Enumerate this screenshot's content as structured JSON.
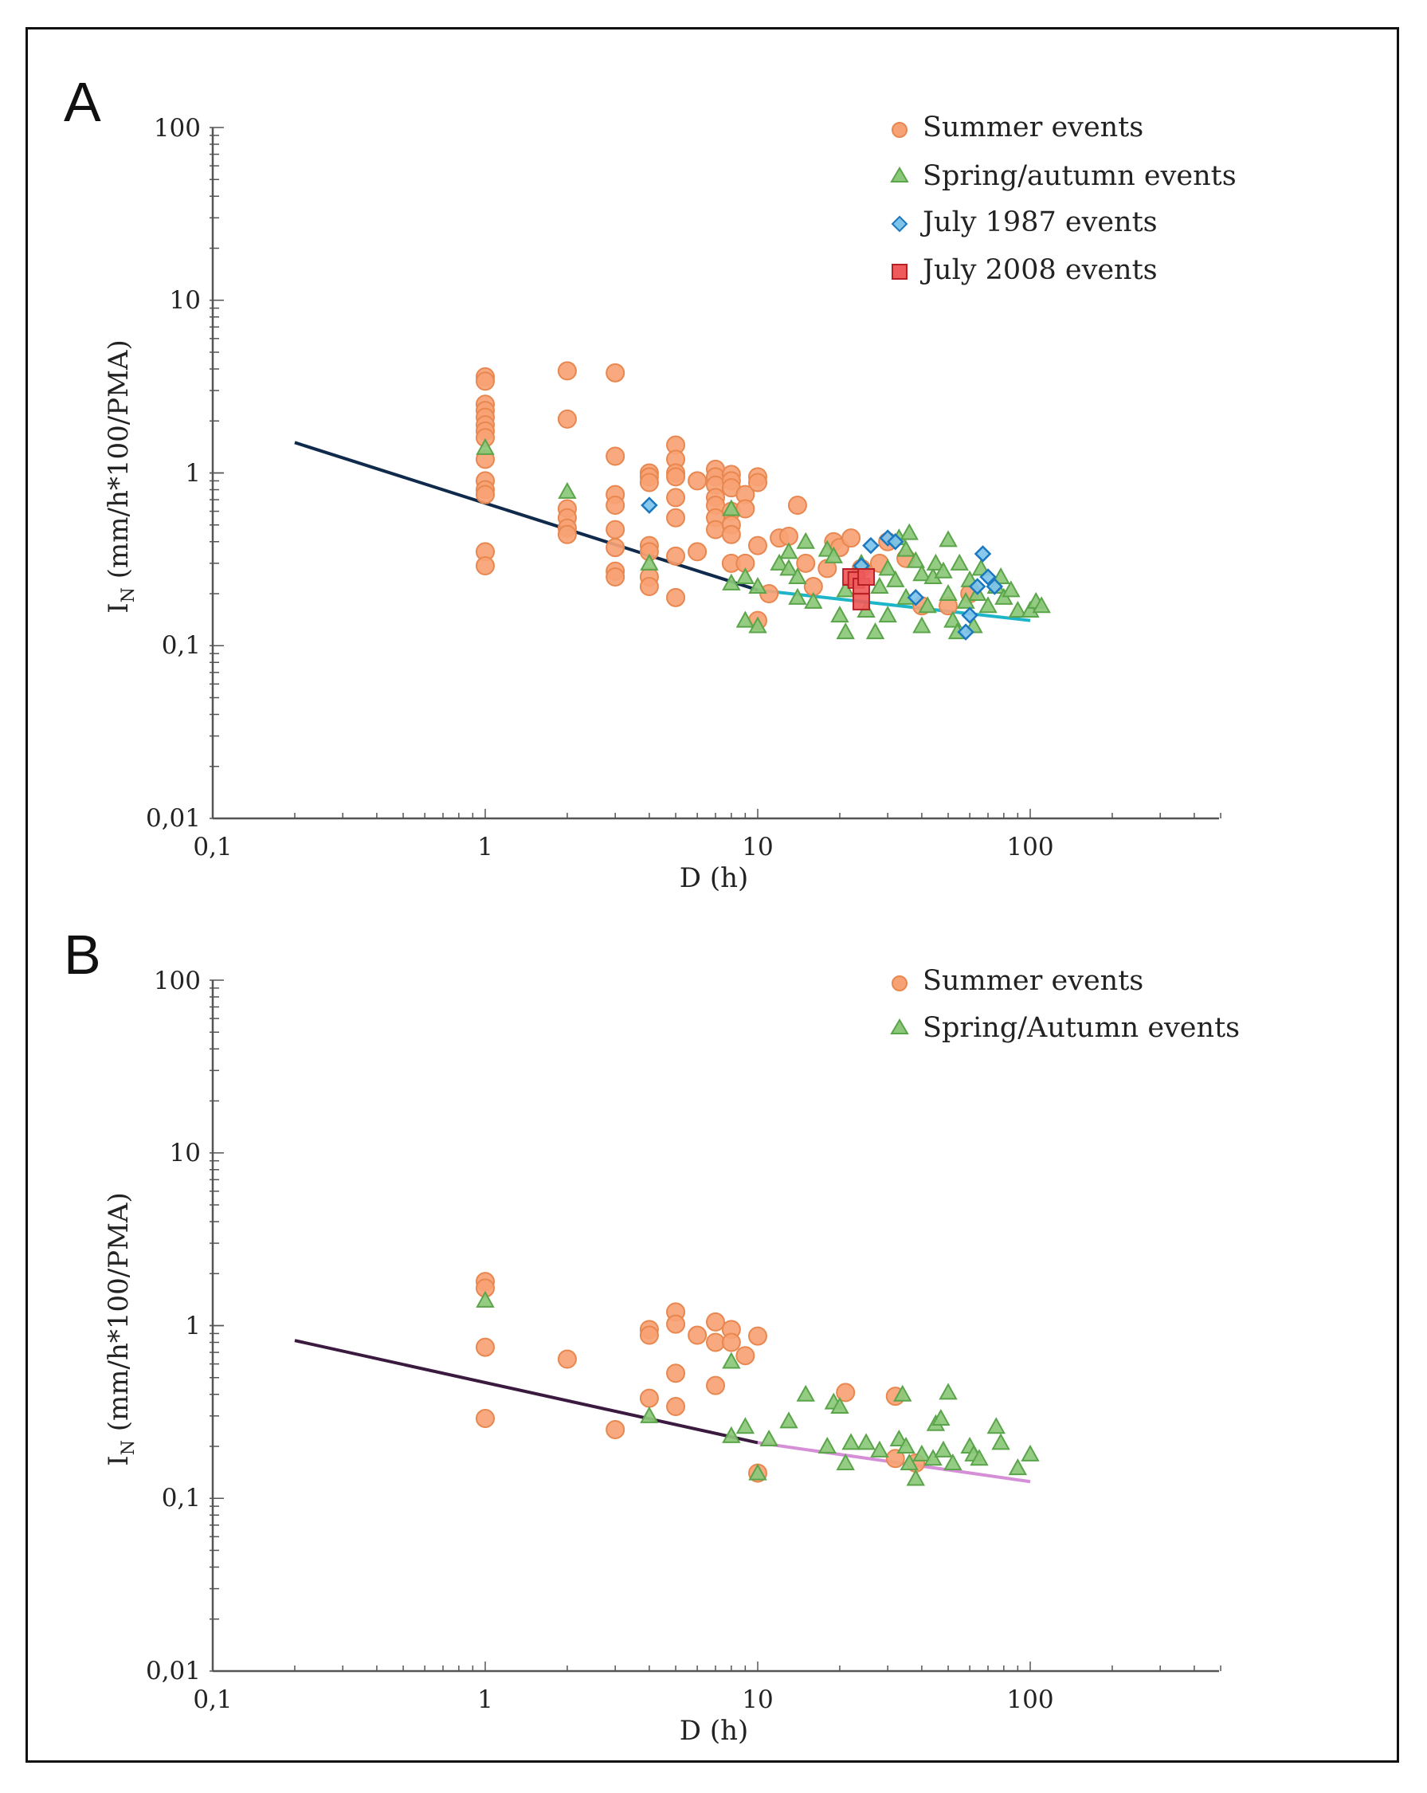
{
  "chart_data": [
    {
      "panel": "A",
      "type": "scatter",
      "xscale": "log",
      "yscale": "log",
      "xlabel": "D (h)",
      "ylabel_main": "I",
      "ylabel_sub": "N",
      "ylabel_rest": " (mm/h*100/PMA)",
      "xlim": [
        0.1,
        500
      ],
      "ylim": [
        0.01,
        100
      ],
      "x_ticks": [
        0.1,
        1,
        10,
        100
      ],
      "x_tick_labels": [
        "0,1",
        "1",
        "10",
        "100"
      ],
      "y_ticks": [
        0.01,
        0.1,
        1,
        10,
        100
      ],
      "y_tick_labels": [
        "0,01",
        "0,1",
        "1",
        "10",
        "100"
      ],
      "legend_position": "top-right",
      "series": [
        {
          "name": "Summer events",
          "marker": "circle",
          "fill": "#f7a274",
          "stroke": "#e8874f",
          "points": [
            [
              1,
              3.6
            ],
            [
              1,
              3.4
            ],
            [
              1,
              2.5
            ],
            [
              1,
              2.3
            ],
            [
              1,
              2.1
            ],
            [
              1,
              1.9
            ],
            [
              1,
              1.75
            ],
            [
              1,
              1.6
            ],
            [
              1,
              1.2
            ],
            [
              1,
              0.9
            ],
            [
              1,
              0.8
            ],
            [
              1,
              0.75
            ],
            [
              1,
              0.35
            ],
            [
              1,
              0.29
            ],
            [
              2,
              3.9
            ],
            [
              2,
              2.05
            ],
            [
              2,
              0.62
            ],
            [
              2,
              0.55
            ],
            [
              2,
              0.48
            ],
            [
              2,
              0.44
            ],
            [
              3,
              3.8
            ],
            [
              3,
              1.25
            ],
            [
              3,
              0.75
            ],
            [
              3,
              0.65
            ],
            [
              3,
              0.47
            ],
            [
              3,
              0.37
            ],
            [
              3,
              0.27
            ],
            [
              3,
              0.25
            ],
            [
              4,
              1.0
            ],
            [
              4,
              0.95
            ],
            [
              4,
              0.88
            ],
            [
              4,
              0.38
            ],
            [
              4,
              0.35
            ],
            [
              4,
              0.25
            ],
            [
              4,
              0.22
            ],
            [
              5,
              1.45
            ],
            [
              5,
              1.2
            ],
            [
              5,
              1.0
            ],
            [
              5,
              0.95
            ],
            [
              5,
              0.72
            ],
            [
              5,
              0.55
            ],
            [
              5,
              0.33
            ],
            [
              5,
              0.19
            ],
            [
              6,
              0.9
            ],
            [
              6,
              0.35
            ],
            [
              7,
              1.05
            ],
            [
              7,
              0.95
            ],
            [
              7,
              0.85
            ],
            [
              7,
              0.72
            ],
            [
              7,
              0.65
            ],
            [
              7,
              0.55
            ],
            [
              7,
              0.47
            ],
            [
              8,
              0.98
            ],
            [
              8,
              0.9
            ],
            [
              8,
              0.82
            ],
            [
              8,
              0.6
            ],
            [
              8,
              0.5
            ],
            [
              8,
              0.44
            ],
            [
              8,
              0.3
            ],
            [
              9,
              0.75
            ],
            [
              9,
              0.62
            ],
            [
              9,
              0.3
            ],
            [
              10,
              0.95
            ],
            [
              10,
              0.88
            ],
            [
              10,
              0.38
            ],
            [
              10,
              0.14
            ],
            [
              11,
              0.2
            ],
            [
              12,
              0.42
            ],
            [
              13,
              0.43
            ],
            [
              14,
              0.65
            ],
            [
              15,
              0.3
            ],
            [
              16,
              0.22
            ],
            [
              18,
              0.28
            ],
            [
              19,
              0.4
            ],
            [
              20,
              0.37
            ],
            [
              22,
              0.42
            ],
            [
              24,
              0.28
            ],
            [
              28,
              0.3
            ],
            [
              30,
              0.4
            ],
            [
              35,
              0.32
            ],
            [
              40,
              0.17
            ],
            [
              50,
              0.17
            ],
            [
              60,
              0.2
            ]
          ]
        },
        {
          "name": "Spring/autumn events",
          "marker": "triangle",
          "fill": "#8cc87a",
          "stroke": "#5aa44a",
          "points": [
            [
              1,
              1.4
            ],
            [
              2,
              0.78
            ],
            [
              4,
              0.3
            ],
            [
              8,
              0.62
            ],
            [
              8,
              0.23
            ],
            [
              9,
              0.25
            ],
            [
              9,
              0.14
            ],
            [
              10,
              0.13
            ],
            [
              10,
              0.22
            ],
            [
              12,
              0.3
            ],
            [
              13,
              0.35
            ],
            [
              13,
              0.28
            ],
            [
              14,
              0.19
            ],
            [
              14,
              0.25
            ],
            [
              15,
              0.4
            ],
            [
              16,
              0.18
            ],
            [
              18,
              0.36
            ],
            [
              19,
              0.33
            ],
            [
              20,
              0.15
            ],
            [
              21,
              0.21
            ],
            [
              21,
              0.12
            ],
            [
              24,
              0.3
            ],
            [
              25,
              0.16
            ],
            [
              27,
              0.12
            ],
            [
              28,
              0.22
            ],
            [
              30,
              0.28
            ],
            [
              30,
              0.15
            ],
            [
              32,
              0.24
            ],
            [
              33,
              0.42
            ],
            [
              35,
              0.19
            ],
            [
              35,
              0.36
            ],
            [
              36,
              0.45
            ],
            [
              38,
              0.31
            ],
            [
              40,
              0.13
            ],
            [
              40,
              0.26
            ],
            [
              42,
              0.17
            ],
            [
              44,
              0.25
            ],
            [
              45,
              0.3
            ],
            [
              48,
              0.27
            ],
            [
              50,
              0.41
            ],
            [
              50,
              0.2
            ],
            [
              52,
              0.14
            ],
            [
              54,
              0.12
            ],
            [
              55,
              0.3
            ],
            [
              58,
              0.18
            ],
            [
              60,
              0.24
            ],
            [
              62,
              0.13
            ],
            [
              64,
              0.2
            ],
            [
              66,
              0.28
            ],
            [
              70,
              0.17
            ],
            [
              75,
              0.22
            ],
            [
              78,
              0.25
            ],
            [
              80,
              0.19
            ],
            [
              85,
              0.21
            ],
            [
              90,
              0.16
            ],
            [
              100,
              0.16
            ],
            [
              105,
              0.18
            ],
            [
              110,
              0.17
            ]
          ]
        },
        {
          "name": "July 1987 events",
          "marker": "diamond",
          "fill": "#7ec3ea",
          "stroke": "#1b78c0",
          "points": [
            [
              4,
              0.65
            ],
            [
              24,
              0.29
            ],
            [
              26,
              0.38
            ],
            [
              30,
              0.42
            ],
            [
              32,
              0.4
            ],
            [
              38,
              0.19
            ],
            [
              58,
              0.12
            ],
            [
              60,
              0.15
            ],
            [
              64,
              0.22
            ],
            [
              67,
              0.34
            ],
            [
              70,
              0.25
            ],
            [
              74,
              0.22
            ]
          ]
        },
        {
          "name": "July 2008 events",
          "marker": "square",
          "fill": "#ef5b5b",
          "stroke": "#b81f25",
          "points": [
            [
              22,
              0.25
            ],
            [
              23,
              0.24
            ],
            [
              24,
              0.22
            ],
            [
              24,
              0.18
            ],
            [
              25,
              0.25
            ]
          ]
        }
      ],
      "thresholds": [
        {
          "color": "#0f2a4a",
          "points": [
            [
              0.2,
              1.5
            ],
            [
              10,
              0.21
            ]
          ]
        },
        {
          "color": "#1fb5c8",
          "points": [
            [
              10,
              0.21
            ],
            [
              100,
              0.14
            ]
          ]
        }
      ]
    },
    {
      "panel": "B",
      "type": "scatter",
      "xscale": "log",
      "yscale": "log",
      "xlabel": "D (h)",
      "ylabel_main": "I",
      "ylabel_sub": "N",
      "ylabel_rest": " (mm/h*100/PMA)",
      "xlim": [
        0.1,
        500
      ],
      "ylim": [
        0.01,
        100
      ],
      "x_ticks": [
        0.1,
        1,
        10,
        100
      ],
      "x_tick_labels": [
        "0,1",
        "1",
        "10",
        "100"
      ],
      "y_ticks": [
        0.01,
        0.1,
        1,
        10,
        100
      ],
      "y_tick_labels": [
        "0,01",
        "0,1",
        "1",
        "10",
        "100"
      ],
      "legend_position": "top-right",
      "series": [
        {
          "name": "Summer events",
          "marker": "circle",
          "fill": "#f7a274",
          "stroke": "#e8874f",
          "points": [
            [
              1,
              1.8
            ],
            [
              1,
              1.65
            ],
            [
              1,
              0.75
            ],
            [
              1,
              0.29
            ],
            [
              2,
              0.64
            ],
            [
              3,
              0.25
            ],
            [
              4,
              0.95
            ],
            [
              4,
              0.88
            ],
            [
              4,
              0.38
            ],
            [
              5,
              1.2
            ],
            [
              5,
              1.02
            ],
            [
              5,
              0.53
            ],
            [
              5,
              0.34
            ],
            [
              6,
              0.88
            ],
            [
              7,
              1.05
            ],
            [
              7,
              0.8
            ],
            [
              7,
              0.45
            ],
            [
              8,
              0.95
            ],
            [
              8,
              0.8
            ],
            [
              9,
              0.67
            ],
            [
              10,
              0.87
            ],
            [
              10,
              0.14
            ],
            [
              21,
              0.41
            ],
            [
              32,
              0.39
            ],
            [
              32,
              0.17
            ],
            [
              38,
              0.16
            ]
          ]
        },
        {
          "name": "Spring/Autumn events",
          "marker": "triangle",
          "fill": "#8cc87a",
          "stroke": "#5aa44a",
          "points": [
            [
              1,
              1.4
            ],
            [
              4,
              0.3
            ],
            [
              8,
              0.62
            ],
            [
              8,
              0.23
            ],
            [
              9,
              0.26
            ],
            [
              10,
              0.14
            ],
            [
              11,
              0.22
            ],
            [
              13,
              0.28
            ],
            [
              15,
              0.4
            ],
            [
              18,
              0.2
            ],
            [
              19,
              0.36
            ],
            [
              20,
              0.34
            ],
            [
              21,
              0.16
            ],
            [
              22,
              0.21
            ],
            [
              25,
              0.21
            ],
            [
              28,
              0.19
            ],
            [
              33,
              0.22
            ],
            [
              34,
              0.4
            ],
            [
              35,
              0.2
            ],
            [
              36,
              0.16
            ],
            [
              38,
              0.13
            ],
            [
              40,
              0.18
            ],
            [
              44,
              0.17
            ],
            [
              45,
              0.27
            ],
            [
              47,
              0.29
            ],
            [
              48,
              0.19
            ],
            [
              50,
              0.41
            ],
            [
              52,
              0.16
            ],
            [
              60,
              0.2
            ],
            [
              62,
              0.18
            ],
            [
              65,
              0.17
            ],
            [
              75,
              0.26
            ],
            [
              78,
              0.21
            ],
            [
              90,
              0.15
            ],
            [
              100,
              0.18
            ]
          ]
        }
      ],
      "thresholds": [
        {
          "color": "#3a1a3e",
          "points": [
            [
              0.2,
              0.82
            ],
            [
              10,
              0.21
            ]
          ]
        },
        {
          "color": "#d58fd6",
          "points": [
            [
              10,
              0.21
            ],
            [
              100,
              0.125
            ]
          ]
        }
      ]
    }
  ]
}
